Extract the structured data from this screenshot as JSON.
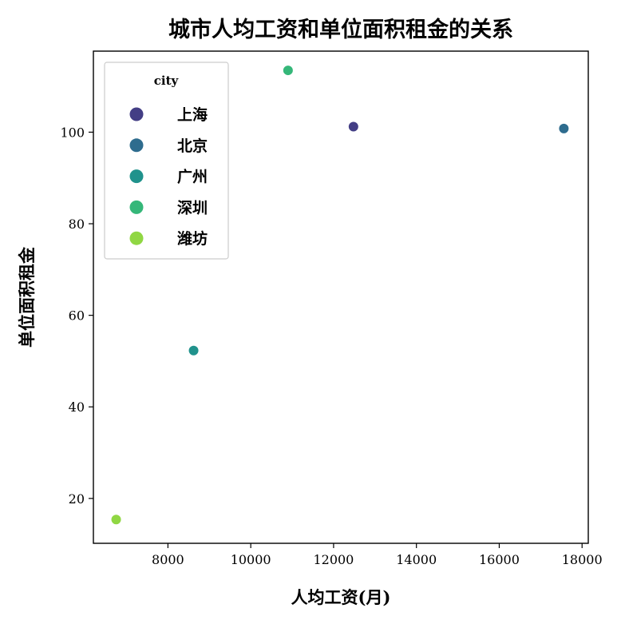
{
  "chart_data": {
    "type": "scatter",
    "title": "城市人均工资和单位面积租金的关系",
    "xlabel": "人均工资(月)",
    "ylabel": "单位面积租金",
    "xlim": [
      6200,
      18150
    ],
    "ylim": [
      10.2,
      117.7
    ],
    "xticks": [
      8000,
      10000,
      12000,
      14000,
      16000,
      18000
    ],
    "yticks": [
      20,
      40,
      60,
      80,
      100
    ],
    "grid": false,
    "legend": {
      "title": "city",
      "placement": "top-left"
    },
    "series": [
      {
        "name": "上海",
        "color": "#433e85",
        "points": [
          {
            "x": 12480,
            "y": 101.2
          }
        ]
      },
      {
        "name": "北京",
        "color": "#2e6c8e",
        "points": [
          {
            "x": 17560,
            "y": 100.8
          }
        ]
      },
      {
        "name": "广州",
        "color": "#20928c",
        "points": [
          {
            "x": 8620,
            "y": 52.3
          }
        ]
      },
      {
        "name": "深圳",
        "color": "#35b779",
        "points": [
          {
            "x": 10900,
            "y": 113.5
          }
        ]
      },
      {
        "name": "潍坊",
        "color": "#90d743",
        "points": [
          {
            "x": 6750,
            "y": 15.4
          }
        ]
      }
    ]
  }
}
